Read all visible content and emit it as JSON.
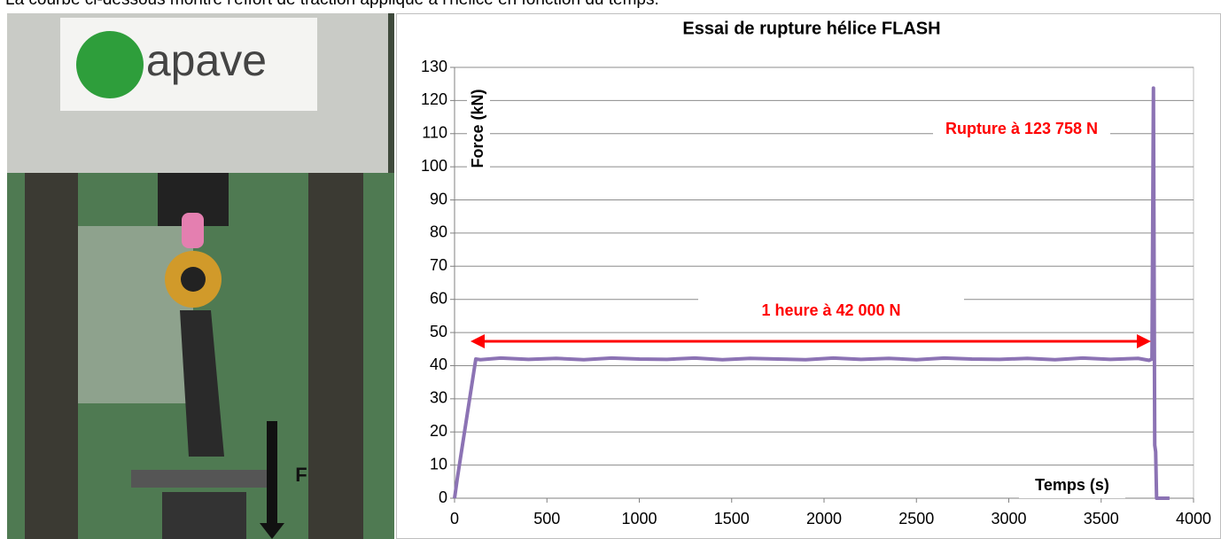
{
  "caption": "La courbe ci-dessous montre l'effort de traction appliqué à l'hélice en fonction du temps.",
  "photo": {
    "logo": "apave",
    "force_label": "F"
  },
  "chart_data": {
    "type": "line",
    "title": "Essai de rupture hélice FLASH",
    "x_label": "Temps (s)",
    "y_label": "Force (kN)",
    "annotations": [
      "Rupture à 123 758 N",
      "1 heure à 42 000 N"
    ],
    "x": [
      0,
      15,
      115,
      140,
      250,
      400,
      550,
      700,
      850,
      1000,
      1150,
      1300,
      1450,
      1600,
      1750,
      1900,
      2050,
      2200,
      2350,
      2500,
      2650,
      2800,
      2950,
      3100,
      3250,
      3400,
      3550,
      3700,
      3760,
      3775,
      3783,
      3790,
      3795,
      3800,
      3870
    ],
    "values": [
      0,
      6,
      42,
      41.8,
      42.3,
      41.9,
      42.2,
      41.8,
      42.3,
      42,
      41.9,
      42.3,
      41.8,
      42.2,
      42,
      41.8,
      42.3,
      41.9,
      42.2,
      41.8,
      42.3,
      42,
      41.9,
      42.2,
      41.8,
      42.3,
      41.9,
      42.2,
      41.6,
      42,
      123.758,
      16,
      14,
      0,
      0
    ],
    "color": "#8c73b4",
    "xlim": [
      0,
      4000
    ],
    "xticks": [
      0,
      500,
      1000,
      1500,
      2000,
      2500,
      3000,
      3500,
      4000
    ],
    "ylim": [
      0,
      130
    ],
    "yticks": [
      0,
      10,
      20,
      30,
      40,
      50,
      60,
      70,
      80,
      90,
      100,
      110,
      120,
      130
    ],
    "grid": true
  }
}
